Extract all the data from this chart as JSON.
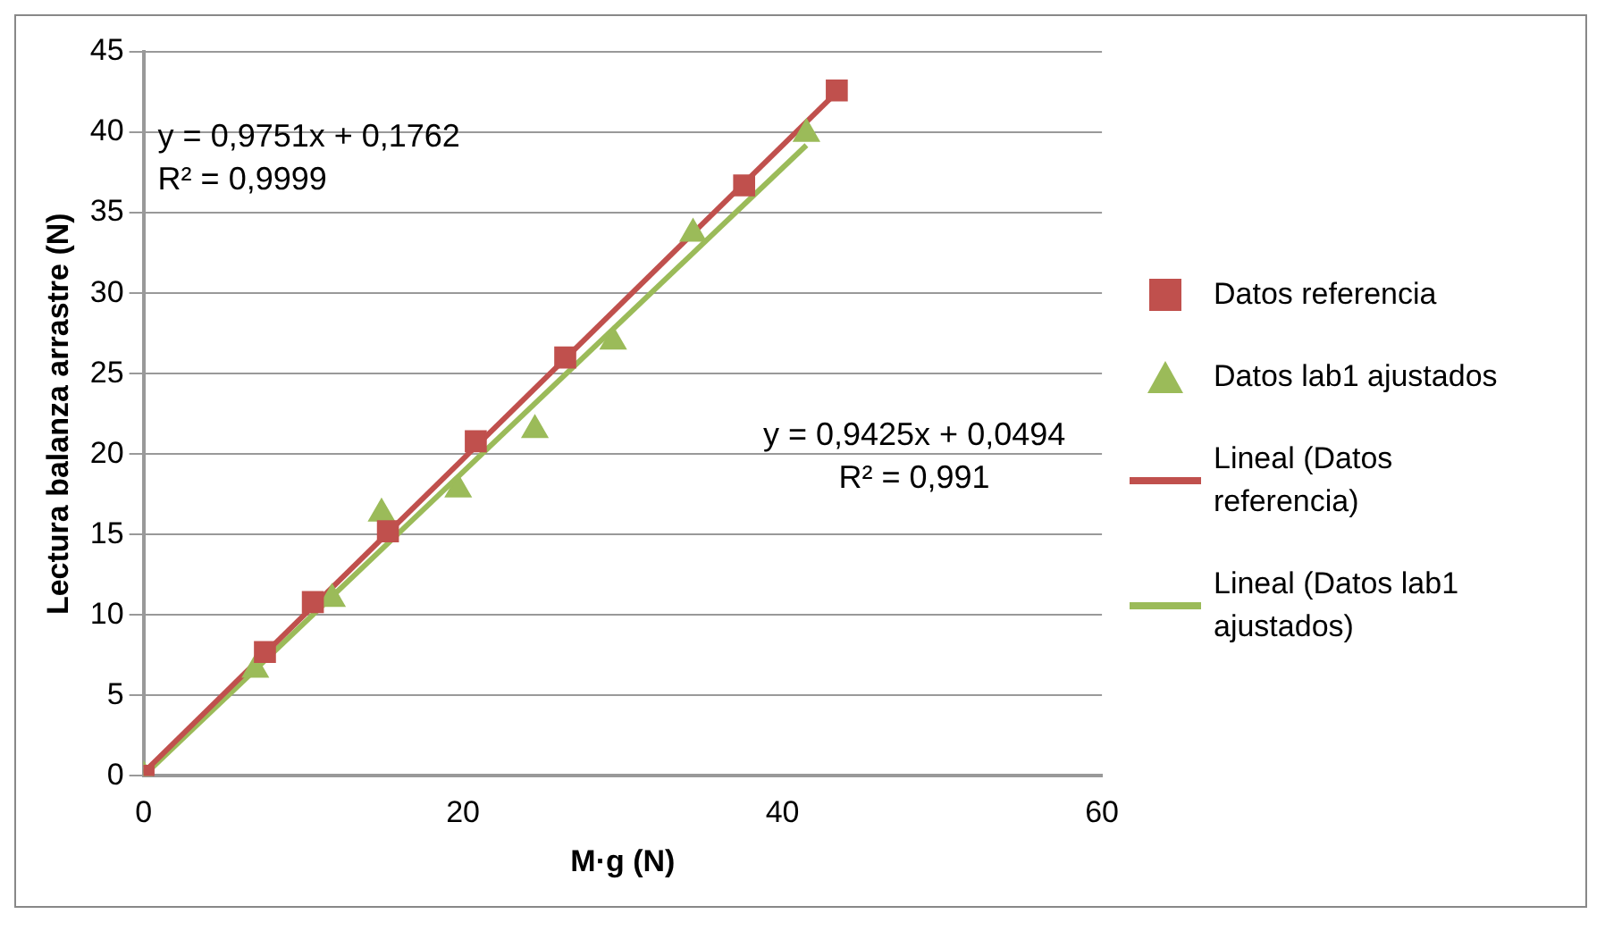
{
  "chart_data": {
    "type": "scatter",
    "xlabel": "M·g (N)",
    "ylabel": "Lectura balanza arrastre (N)",
    "xlim": [
      0,
      60
    ],
    "xticks": [
      0,
      20,
      40,
      60
    ],
    "ylim": [
      0,
      45
    ],
    "yticks": [
      0,
      5,
      10,
      15,
      20,
      25,
      30,
      35,
      40,
      45
    ],
    "grid": "y",
    "legend": "right",
    "series": [
      {
        "name": "Datos referencia",
        "marker": "square",
        "color": "#c0504d",
        "x": [
          0,
          7.6,
          10.6,
          15.3,
          20.8,
          26.4,
          37.6,
          43.4
        ],
        "values": [
          0,
          7.7,
          10.8,
          15.2,
          20.8,
          26.0,
          36.7,
          42.6
        ]
      },
      {
        "name": "Datos lab1 ajustados",
        "marker": "triangle",
        "color": "#9bbb59",
        "x": [
          0,
          7.0,
          11.8,
          14.9,
          19.7,
          24.5,
          29.4,
          34.4,
          41.5
        ],
        "values": [
          0,
          6.6,
          11.0,
          16.3,
          17.8,
          21.5,
          27.0,
          33.7,
          39.9
        ]
      },
      {
        "name": "Lineal (Datos referencia)",
        "type": "line",
        "marker": "none",
        "color": "#c0504d",
        "x": [
          0,
          43.4
        ],
        "values": [
          0.2,
          42.5
        ]
      },
      {
        "name": "Lineal (Datos lab1 ajustados)",
        "type": "line",
        "marker": "none",
        "color": "#9bbb59",
        "x": [
          0,
          41.5
        ],
        "values": [
          0.0,
          39.2
        ]
      }
    ],
    "annotations": [
      "y = 0,9751x + 0,1762\nR² = 0,9999",
      "y = 0,9425x + 0,0494\nR² = 0,991"
    ]
  }
}
